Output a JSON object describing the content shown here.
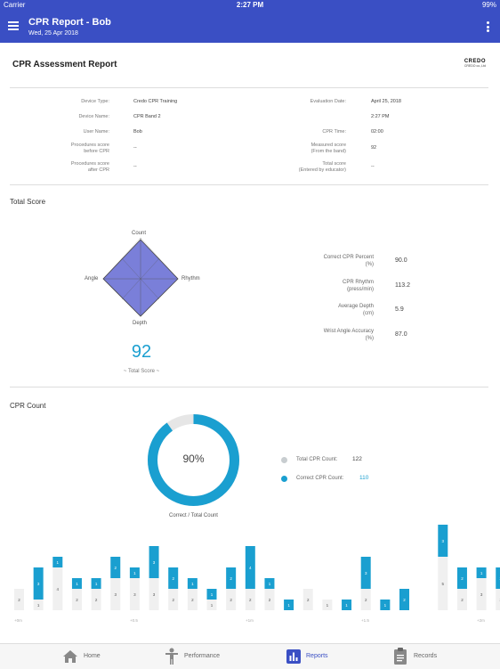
{
  "status_bar": {
    "carrier": "Carrier",
    "time": "2:27 PM",
    "battery": "99%"
  },
  "app_bar": {
    "title": "CPR Report - Bob",
    "subtitle": "Wed, 25 Apr 2018",
    "menu_icon": "hamburger-icon",
    "more_icon": "kebab-icon"
  },
  "report": {
    "title": "CPR Assessment Report",
    "logo": {
      "main": "CREDO",
      "sub": "CREDO co.,Ltd"
    },
    "left_info": [
      {
        "label": "Device Type:",
        "value": "Credo CPR Training"
      },
      {
        "label": "Device Name:",
        "value": "CPR Band 2"
      },
      {
        "label": "User Name:",
        "value": "Bob"
      },
      {
        "label": "Procedures score\nbefore CPR",
        "value": "--"
      },
      {
        "label": "Procedures score\nafter CPR",
        "value": "--"
      }
    ],
    "right_info": [
      {
        "label": "Evaluation Date:",
        "value": "April 25, 2018"
      },
      {
        "label": "",
        "value": "2:27 PM"
      },
      {
        "label": "CPR Time:",
        "value": "02:00"
      },
      {
        "label": "Measured score\n(From the band)",
        "value": "92"
      },
      {
        "label": "Total score\n(Entered by educator)",
        "value": "--"
      }
    ]
  },
  "total_score_section": {
    "title": "Total Score",
    "radar_axes": [
      "Count",
      "Rhythm",
      "Depth",
      "Angle"
    ],
    "radar_values": [
      1,
      1,
      1,
      1
    ],
    "score": "92",
    "score_caption": "~ Total Score ~",
    "metrics": [
      {
        "label": "Correct CPR Percent\n(%)",
        "value": "90.0"
      },
      {
        "label": "CPR Rhythm\n(press/min)",
        "value": "113.2"
      },
      {
        "label": "Average Depth\n(cm)",
        "value": "5.9"
      },
      {
        "label": "Wrist Angle Accuracy\n(%)",
        "value": "87.0"
      }
    ]
  },
  "cpr_count_section": {
    "title": "CPR Count",
    "donut_percent": "90%",
    "donut_fraction": 0.9,
    "donut_caption": "Correct / Total Count",
    "legend": [
      {
        "label": "Total CPR Count:",
        "value": "122",
        "color": "#c8cdd0"
      },
      {
        "label": "Correct CPR Count:",
        "value": "110",
        "color": "#1a9fd0"
      }
    ]
  },
  "chart_data": {
    "type": "bar",
    "series": [
      {
        "name": "",
        "values": [
          0,
          3,
          1,
          1,
          1,
          2,
          1,
          3,
          2,
          1,
          1,
          2,
          4,
          1,
          1,
          0,
          0,
          1,
          3,
          1,
          2,
          0,
          3,
          2,
          1,
          2
        ]
      },
      {
        "name": "",
        "values": [
          2,
          1,
          4,
          2,
          2,
          3,
          3,
          3,
          2,
          2,
          1,
          2,
          2,
          2,
          0,
          2,
          1,
          0,
          2,
          0,
          0,
          0,
          5,
          2,
          3,
          2
        ]
      }
    ],
    "x_tick_labels": [
      "+0m",
      "+0.5",
      "+1m",
      "+1.5",
      "+2m"
    ],
    "colors": {
      "correct": "#1a9fd0",
      "other": "#f0f0f0"
    }
  },
  "tab_bar": {
    "tabs": [
      {
        "label": "Home",
        "icon": "home-icon"
      },
      {
        "label": "Performance",
        "icon": "person-icon"
      },
      {
        "label": "Reports",
        "icon": "chart-icon"
      },
      {
        "label": "Records",
        "icon": "clipboard-icon"
      }
    ],
    "active": "Reports"
  }
}
